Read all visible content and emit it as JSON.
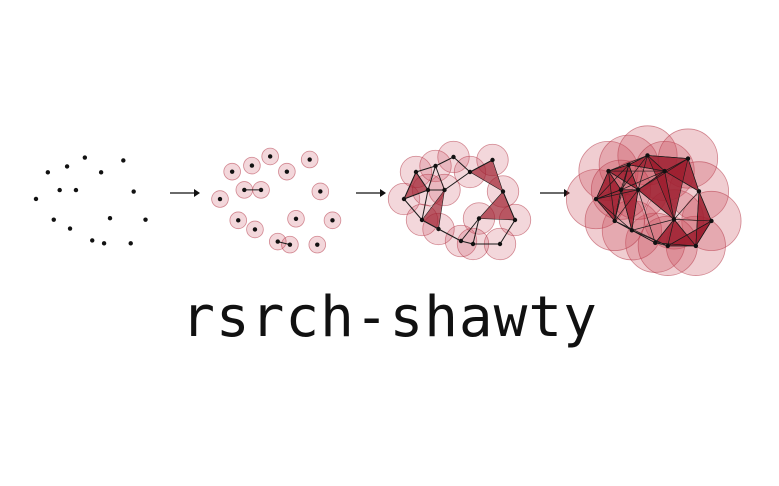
{
  "title": "rsrch-shawty",
  "colors": {
    "ink": "#111111",
    "ball_fill": "#c94a5a",
    "ball_stroke": "#b23446",
    "simplex_fill": "#9e1f2f",
    "edge": "#1a1a1a"
  },
  "icons": [
    "arrow-right-icon",
    "arrow-right-icon",
    "arrow-right-icon"
  ],
  "stages": [
    {
      "name": "point-cloud",
      "ball_radius": 0,
      "edge_threshold": 0
    },
    {
      "name": "small-radius",
      "ball_radius": 0.55,
      "edge_threshold": 1.1
    },
    {
      "name": "medium-radius",
      "ball_radius": 1.05,
      "edge_threshold": 2.1
    },
    {
      "name": "large-radius",
      "ball_radius": 1.9,
      "edge_threshold": 3.8
    }
  ]
}
